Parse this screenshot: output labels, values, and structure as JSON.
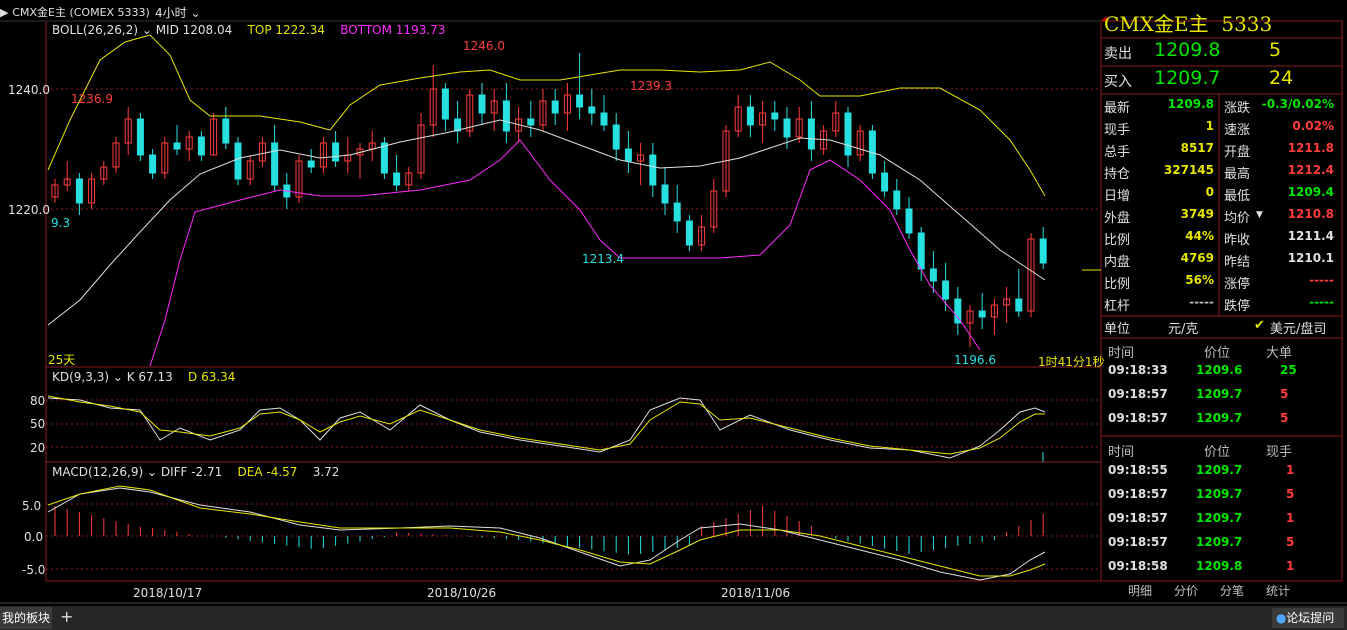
{
  "header": {
    "instrument": "CMX金E主 (COMEX 5333)",
    "period": "4小时",
    "right_title": "CMX金E主",
    "right_code": "5333"
  },
  "indicators": {
    "boll": {
      "name": "BOLL(26,26,2)",
      "mid": "MID 1208.04",
      "top": "TOP 1222.34",
      "bottom": "BOTTOM 1193.73"
    },
    "kd": {
      "name": "KD(9,3,3)",
      "k": "K 67.13",
      "d": "D 63.34"
    },
    "macd": {
      "name": "MACD(12,26,9)",
      "diff": "DIFF -2.71",
      "dea": "DEA -4.57",
      "macd": "3.72"
    }
  },
  "axes": {
    "price_ticks": [
      "1240.0",
      "1220.0"
    ],
    "kd_ticks": [
      "80",
      "50",
      "20"
    ],
    "macd_ticks": [
      "5.0",
      "0.0",
      "-5.0"
    ],
    "dates": [
      "2018/10/17",
      "2018/10/26",
      "2018/11/06"
    ]
  },
  "annotations": {
    "hi1": "1236.9",
    "low1": "9.3",
    "hi2": "1246.0",
    "hi3": "1239.3",
    "low2": "1213.4",
    "low3": "1196.6",
    "days": "25天",
    "countdown": "1时41分1秒"
  },
  "quote": {
    "sell_label": "卖出",
    "sell_price": "1209.8",
    "sell_vol": "5",
    "buy_label": "买入",
    "buy_price": "1209.7",
    "buy_vol": "24",
    "rows": [
      {
        "l1": "最新",
        "v1": "1209.8",
        "c1": "grn",
        "l2": "涨跌",
        "v2": "-0.3/0.02%",
        "c2": "grn"
      },
      {
        "l1": "现手",
        "v1": "1",
        "c1": "yel",
        "l2": "速涨",
        "v2": "0.02%",
        "c2": "red"
      },
      {
        "l1": "总手",
        "v1": "8517",
        "c1": "yel",
        "l2": "开盘",
        "v2": "1211.8",
        "c2": "red"
      },
      {
        "l1": "持仓",
        "v1": "327145",
        "c1": "yel",
        "l2": "最高",
        "v2": "1212.4",
        "c2": "red"
      },
      {
        "l1": "日增",
        "v1": "0",
        "c1": "yel",
        "l2": "最低",
        "v2": "1209.4",
        "c2": "grn"
      },
      {
        "l1": "外盘",
        "v1": "3749",
        "c1": "yel",
        "l2": "均价",
        "v2": "1210.8",
        "c2": "red"
      },
      {
        "l1": "比例",
        "v1": "44%",
        "c1": "yel",
        "l2": "昨收",
        "v2": "1211.4",
        "c2": "wht"
      },
      {
        "l1": "内盘",
        "v1": "4769",
        "c1": "yel",
        "l2": "昨结",
        "v2": "1210.1",
        "c2": "wht"
      },
      {
        "l1": "比例",
        "v1": "56%",
        "c1": "yel",
        "l2": "涨停",
        "v2": "-----",
        "c2": "red"
      },
      {
        "l1": "杠杆",
        "v1": "-----",
        "c1": "gry",
        "l2": "跌停",
        "v2": "-----",
        "c2": "grn"
      }
    ],
    "unit_label": "单位",
    "unit_value": "元/克",
    "unit_alt": "美元/盘司"
  },
  "ticks_big": {
    "headers": [
      "时间",
      "价位",
      "大单"
    ],
    "rows": [
      {
        "time": "09:18:33",
        "price": "1209.6",
        "vol": "25",
        "vc": "grn"
      },
      {
        "time": "09:18:57",
        "price": "1209.7",
        "vol": "5",
        "vc": "red"
      },
      {
        "time": "09:18:57",
        "price": "1209.7",
        "vol": "5",
        "vc": "red"
      }
    ]
  },
  "ticks": {
    "headers": [
      "时间",
      "价位",
      "现手"
    ],
    "rows": [
      {
        "time": "09:18:55",
        "price": "1209.7",
        "vol": "1",
        "vc": "red"
      },
      {
        "time": "09:18:57",
        "price": "1209.7",
        "vol": "5",
        "vc": "red"
      },
      {
        "time": "09:18:57",
        "price": "1209.7",
        "vol": "1",
        "vc": "red"
      },
      {
        "time": "09:18:57",
        "price": "1209.7",
        "vol": "5",
        "vc": "red"
      },
      {
        "time": "09:18:58",
        "price": "1209.8",
        "vol": "1",
        "vc": "red"
      }
    ]
  },
  "tabs": [
    "明细",
    "分价",
    "分笔",
    "统计"
  ],
  "bottom": {
    "board_tab": "我的板块",
    "add": "+",
    "forum": "论坛提问"
  },
  "colors": {
    "up": "#ff3c3c",
    "down": "#27e0e0",
    "boll_top": "#e6e600",
    "boll_mid": "#e0e0e0",
    "boll_bot": "#ff2aff",
    "grid": "#8b1a1a"
  },
  "chart_data": {
    "type": "candlestick",
    "price_range": [
      1190,
      1250
    ],
    "candles": [
      [
        1222,
        1225,
        1221,
        1224
      ],
      [
        1224,
        1228,
        1223,
        1225
      ],
      [
        1225,
        1226,
        1219,
        1221
      ],
      [
        1221,
        1226,
        1220,
        1225
      ],
      [
        1225,
        1228,
        1224,
        1227
      ],
      [
        1227,
        1232,
        1226,
        1231
      ],
      [
        1231,
        1237,
        1229,
        1235
      ],
      [
        1235,
        1236,
        1228,
        1229
      ],
      [
        1229,
        1230,
        1225,
        1226
      ],
      [
        1226,
        1232,
        1225,
        1231
      ],
      [
        1231,
        1234,
        1229,
        1230
      ],
      [
        1230,
        1233,
        1228,
        1232
      ],
      [
        1232,
        1233,
        1228,
        1229
      ],
      [
        1229,
        1236,
        1229,
        1235
      ],
      [
        1235,
        1237,
        1230,
        1231
      ],
      [
        1231,
        1232,
        1224,
        1225
      ],
      [
        1225,
        1229,
        1224,
        1228
      ],
      [
        1228,
        1232,
        1227,
        1231
      ],
      [
        1231,
        1234,
        1223,
        1224
      ],
      [
        1224,
        1226,
        1220,
        1222
      ],
      [
        1222,
        1229,
        1221,
        1228
      ],
      [
        1228,
        1230,
        1226,
        1227
      ],
      [
        1227,
        1232,
        1226,
        1231
      ],
      [
        1231,
        1233,
        1227,
        1228
      ],
      [
        1228,
        1232,
        1226,
        1229
      ],
      [
        1229,
        1231,
        1225,
        1230
      ],
      [
        1230,
        1233,
        1228,
        1231
      ],
      [
        1231,
        1232,
        1225,
        1226
      ],
      [
        1226,
        1229,
        1223,
        1224
      ],
      [
        1224,
        1227,
        1223,
        1226
      ],
      [
        1226,
        1236,
        1225,
        1234
      ],
      [
        1234,
        1244,
        1232,
        1240
      ],
      [
        1240,
        1241,
        1233,
        1235
      ],
      [
        1235,
        1238,
        1231,
        1233
      ],
      [
        1233,
        1240,
        1232,
        1239
      ],
      [
        1239,
        1241,
        1234,
        1236
      ],
      [
        1236,
        1240,
        1233,
        1238
      ],
      [
        1238,
        1241,
        1231,
        1233
      ],
      [
        1233,
        1237,
        1231,
        1235
      ],
      [
        1235,
        1238,
        1232,
        1234
      ],
      [
        1234,
        1240,
        1233,
        1238
      ],
      [
        1238,
        1240,
        1234,
        1236
      ],
      [
        1236,
        1241,
        1233,
        1239
      ],
      [
        1239,
        1246,
        1235,
        1237
      ],
      [
        1237,
        1240,
        1234,
        1236
      ],
      [
        1236,
        1239,
        1233,
        1234
      ],
      [
        1234,
        1236,
        1228,
        1230
      ],
      [
        1230,
        1233,
        1226,
        1228
      ],
      [
        1228,
        1231,
        1224,
        1229
      ],
      [
        1229,
        1231,
        1222,
        1224
      ],
      [
        1224,
        1227,
        1219,
        1221
      ],
      [
        1221,
        1224,
        1216,
        1218
      ],
      [
        1218,
        1219,
        1213,
        1214
      ],
      [
        1214,
        1219,
        1213,
        1217
      ],
      [
        1217,
        1225,
        1216,
        1223
      ],
      [
        1223,
        1234,
        1222,
        1233
      ],
      [
        1233,
        1239,
        1232,
        1237
      ],
      [
        1237,
        1239,
        1232,
        1234
      ],
      [
        1234,
        1238,
        1231,
        1236
      ],
      [
        1236,
        1238,
        1233,
        1235
      ],
      [
        1235,
        1237,
        1230,
        1232
      ],
      [
        1232,
        1237,
        1231,
        1235
      ],
      [
        1235,
        1238,
        1228,
        1230
      ],
      [
        1230,
        1234,
        1229,
        1233
      ],
      [
        1233,
        1238,
        1232,
        1236
      ],
      [
        1236,
        1237,
        1227,
        1229
      ],
      [
        1229,
        1234,
        1228,
        1233
      ],
      [
        1233,
        1234,
        1225,
        1226
      ],
      [
        1226,
        1228,
        1222,
        1223
      ],
      [
        1223,
        1225,
        1219,
        1220
      ],
      [
        1220,
        1222,
        1215,
        1216
      ],
      [
        1216,
        1217,
        1208,
        1210
      ],
      [
        1210,
        1213,
        1206,
        1208
      ],
      [
        1208,
        1211,
        1203,
        1205
      ],
      [
        1205,
        1207,
        1199,
        1201
      ],
      [
        1201,
        1204,
        1197,
        1203
      ],
      [
        1203,
        1206,
        1200,
        1202
      ],
      [
        1202,
        1205,
        1199,
        1204
      ],
      [
        1204,
        1207,
        1201,
        1205
      ],
      [
        1205,
        1210,
        1202,
        1203
      ],
      [
        1203,
        1216,
        1202,
        1215
      ],
      [
        1215,
        1217,
        1210,
        1211
      ]
    ]
  }
}
